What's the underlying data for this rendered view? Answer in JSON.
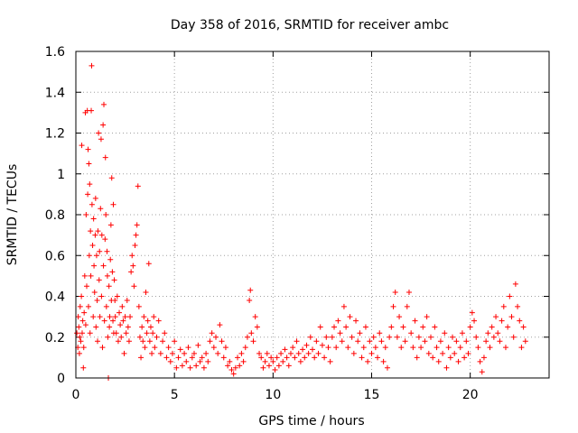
{
  "chart_data": {
    "type": "scatter",
    "title": "Day 358 of 2016, SRMTID for receiver ambc",
    "xlabel": "GPS time / hours",
    "ylabel": "SRMTID / TECUs",
    "xlim": [
      0,
      24
    ],
    "ylim": [
      0,
      1.6
    ],
    "xticks": [
      0,
      5,
      10,
      15,
      20
    ],
    "xtick_labels": [
      "0",
      "5",
      "10",
      "15",
      "20"
    ],
    "yticks": [
      0,
      0.2,
      0.4,
      0.6,
      0.8,
      1,
      1.2,
      1.4,
      1.6
    ],
    "ytick_labels": [
      "0",
      "0.2",
      "0.4",
      "0.6",
      "0.8",
      "1",
      "1.2",
      "1.4",
      "1.6"
    ],
    "grid": true,
    "marker": "plus",
    "color": "#ff0000",
    "series": [
      {
        "points": [
          [
            0.05,
            0.22
          ],
          [
            0.1,
            0.15
          ],
          [
            0.12,
            0.3
          ],
          [
            0.15,
            0.25
          ],
          [
            0.18,
            0.12
          ],
          [
            0.2,
            0.2
          ],
          [
            0.22,
            0.35
          ],
          [
            0.25,
            0.18
          ],
          [
            0.28,
            0.4
          ],
          [
            0.3,
            1.14
          ],
          [
            0.32,
            0.22
          ],
          [
            0.35,
            0.28
          ],
          [
            0.38,
            0.05
          ],
          [
            0.4,
            0.15
          ],
          [
            0.42,
            0.32
          ],
          [
            0.45,
            0.5
          ],
          [
            0.48,
            1.3
          ],
          [
            0.5,
            0.26
          ],
          [
            0.52,
            0.8
          ],
          [
            0.55,
            0.45
          ],
          [
            0.58,
            1.31
          ],
          [
            0.6,
            0.9
          ],
          [
            0.62,
            1.12
          ],
          [
            0.64,
            0.35
          ],
          [
            0.66,
            1.05
          ],
          [
            0.68,
            0.6
          ],
          [
            0.7,
            0.95
          ],
          [
            0.72,
            0.22
          ],
          [
            0.74,
            0.72
          ],
          [
            0.76,
            0.5
          ],
          [
            0.78,
            1.31
          ],
          [
            0.8,
            1.53
          ],
          [
            0.82,
            0.85
          ],
          [
            0.85,
            0.65
          ],
          [
            0.88,
            0.3
          ],
          [
            0.9,
            0.78
          ],
          [
            0.92,
            0.55
          ],
          [
            0.95,
            0.42
          ],
          [
            0.98,
            0.7
          ],
          [
            1.0,
            0.88
          ],
          [
            1.02,
            0.25
          ],
          [
            1.05,
            0.6
          ],
          [
            1.08,
            0.38
          ],
          [
            1.1,
            0.18
          ],
          [
            1.12,
            0.72
          ],
          [
            1.15,
            1.2
          ],
          [
            1.18,
            0.48
          ],
          [
            1.2,
            0.62
          ],
          [
            1.22,
            0.3
          ],
          [
            1.25,
            0.83
          ],
          [
            1.28,
            1.17
          ],
          [
            1.3,
            0.4
          ],
          [
            1.32,
            0.7
          ],
          [
            1.35,
            0.15
          ],
          [
            1.38,
            1.24
          ],
          [
            1.4,
            0.55
          ],
          [
            1.42,
            1.34
          ],
          [
            1.45,
            0.28
          ],
          [
            1.48,
            0.68
          ],
          [
            1.5,
            1.08
          ],
          [
            1.52,
            0.8
          ],
          [
            1.55,
            0.35
          ],
          [
            1.58,
            0.62
          ],
          [
            1.6,
            0.5
          ],
          [
            1.62,
            0.2
          ],
          [
            1.65,
            0.0
          ],
          [
            1.68,
            0.45
          ],
          [
            1.7,
            0.25
          ],
          [
            1.72,
            0.3
          ],
          [
            1.75,
            0.58
          ],
          [
            1.78,
            0.75
          ],
          [
            1.8,
            0.38
          ],
          [
            1.82,
            0.98
          ],
          [
            1.85,
            0.52
          ],
          [
            1.88,
            0.28
          ],
          [
            1.9,
            0.85
          ],
          [
            1.92,
            0.22
          ],
          [
            1.95,
            0.48
          ],
          [
            1.98,
            0.38
          ],
          [
            2.0,
            0.3
          ],
          [
            2.05,
            0.22
          ],
          [
            2.1,
            0.4
          ],
          [
            2.15,
            0.18
          ],
          [
            2.2,
            0.32
          ],
          [
            2.25,
            0.26
          ],
          [
            2.3,
            0.2
          ],
          [
            2.35,
            0.35
          ],
          [
            2.4,
            0.28
          ],
          [
            2.45,
            0.12
          ],
          [
            2.5,
            0.3
          ],
          [
            2.55,
            0.22
          ],
          [
            2.6,
            0.38
          ],
          [
            2.65,
            0.25
          ],
          [
            2.7,
            0.18
          ],
          [
            2.75,
            0.3
          ],
          [
            2.8,
            0.52
          ],
          [
            2.85,
            0.6
          ],
          [
            2.9,
            0.55
          ],
          [
            2.95,
            0.45
          ],
          [
            3.0,
            0.65
          ],
          [
            3.05,
            0.7
          ],
          [
            3.1,
            0.75
          ],
          [
            3.15,
            0.94
          ],
          [
            3.2,
            0.35
          ],
          [
            3.25,
            0.2
          ],
          [
            3.3,
            0.1
          ],
          [
            3.35,
            0.25
          ],
          [
            3.4,
            0.18
          ],
          [
            3.45,
            0.3
          ],
          [
            3.5,
            0.15
          ],
          [
            3.55,
            0.42
          ],
          [
            3.6,
            0.22
          ],
          [
            3.65,
            0.28
          ],
          [
            3.7,
            0.56
          ],
          [
            3.75,
            0.18
          ],
          [
            3.8,
            0.25
          ],
          [
            3.85,
            0.12
          ],
          [
            3.9,
            0.22
          ],
          [
            3.95,
            0.3
          ],
          [
            4.0,
            0.15
          ],
          [
            4.1,
            0.2
          ],
          [
            4.2,
            0.28
          ],
          [
            4.3,
            0.12
          ],
          [
            4.4,
            0.18
          ],
          [
            4.5,
            0.22
          ],
          [
            4.6,
            0.1
          ],
          [
            4.7,
            0.15
          ],
          [
            4.8,
            0.08
          ],
          [
            4.9,
            0.12
          ],
          [
            5.0,
            0.18
          ],
          [
            5.1,
            0.05
          ],
          [
            5.2,
            0.1
          ],
          [
            5.3,
            0.14
          ],
          [
            5.4,
            0.06
          ],
          [
            5.5,
            0.12
          ],
          [
            5.6,
            0.08
          ],
          [
            5.7,
            0.15
          ],
          [
            5.8,
            0.05
          ],
          [
            5.9,
            0.1
          ],
          [
            6.0,
            0.12
          ],
          [
            6.1,
            0.06
          ],
          [
            6.2,
            0.16
          ],
          [
            6.3,
            0.08
          ],
          [
            6.4,
            0.1
          ],
          [
            6.5,
            0.05
          ],
          [
            6.6,
            0.12
          ],
          [
            6.7,
            0.08
          ],
          [
            6.8,
            0.18
          ],
          [
            6.9,
            0.22
          ],
          [
            7.0,
            0.15
          ],
          [
            7.1,
            0.2
          ],
          [
            7.2,
            0.12
          ],
          [
            7.3,
            0.26
          ],
          [
            7.4,
            0.18
          ],
          [
            7.5,
            0.1
          ],
          [
            7.6,
            0.15
          ],
          [
            7.7,
            0.06
          ],
          [
            7.8,
            0.08
          ],
          [
            7.9,
            0.04
          ],
          [
            8.0,
            0.02
          ],
          [
            8.1,
            0.05
          ],
          [
            8.2,
            0.1
          ],
          [
            8.3,
            0.06
          ],
          [
            8.4,
            0.12
          ],
          [
            8.5,
            0.08
          ],
          [
            8.6,
            0.15
          ],
          [
            8.7,
            0.2
          ],
          [
            8.8,
            0.38
          ],
          [
            8.85,
            0.43
          ],
          [
            8.9,
            0.22
          ],
          [
            9.0,
            0.18
          ],
          [
            9.1,
            0.3
          ],
          [
            9.2,
            0.25
          ],
          [
            9.3,
            0.12
          ],
          [
            9.4,
            0.1
          ],
          [
            9.5,
            0.05
          ],
          [
            9.6,
            0.08
          ],
          [
            9.7,
            0.12
          ],
          [
            9.8,
            0.06
          ],
          [
            9.9,
            0.1
          ],
          [
            10.0,
            0.08
          ],
          [
            10.1,
            0.04
          ],
          [
            10.2,
            0.1
          ],
          [
            10.3,
            0.06
          ],
          [
            10.4,
            0.12
          ],
          [
            10.5,
            0.08
          ],
          [
            10.6,
            0.14
          ],
          [
            10.7,
            0.1
          ],
          [
            10.8,
            0.06
          ],
          [
            10.9,
            0.12
          ],
          [
            11.0,
            0.15
          ],
          [
            11.1,
            0.1
          ],
          [
            11.2,
            0.18
          ],
          [
            11.3,
            0.12
          ],
          [
            11.4,
            0.08
          ],
          [
            11.5,
            0.14
          ],
          [
            11.6,
            0.1
          ],
          [
            11.7,
            0.16
          ],
          [
            11.8,
            0.12
          ],
          [
            11.9,
            0.2
          ],
          [
            12.0,
            0.14
          ],
          [
            12.1,
            0.1
          ],
          [
            12.2,
            0.18
          ],
          [
            12.3,
            0.12
          ],
          [
            12.4,
            0.25
          ],
          [
            12.5,
            0.16
          ],
          [
            12.6,
            0.1
          ],
          [
            12.7,
            0.2
          ],
          [
            12.8,
            0.15
          ],
          [
            12.9,
            0.08
          ],
          [
            13.0,
            0.2
          ],
          [
            13.1,
            0.25
          ],
          [
            13.2,
            0.15
          ],
          [
            13.3,
            0.28
          ],
          [
            13.4,
            0.22
          ],
          [
            13.5,
            0.18
          ],
          [
            13.6,
            0.35
          ],
          [
            13.7,
            0.25
          ],
          [
            13.8,
            0.15
          ],
          [
            13.9,
            0.3
          ],
          [
            14.0,
            0.2
          ],
          [
            14.1,
            0.12
          ],
          [
            14.2,
            0.28
          ],
          [
            14.3,
            0.18
          ],
          [
            14.4,
            0.22
          ],
          [
            14.5,
            0.1
          ],
          [
            14.6,
            0.15
          ],
          [
            14.7,
            0.25
          ],
          [
            14.8,
            0.08
          ],
          [
            14.9,
            0.18
          ],
          [
            15.0,
            0.12
          ],
          [
            15.1,
            0.2
          ],
          [
            15.2,
            0.15
          ],
          [
            15.3,
            0.1
          ],
          [
            15.4,
            0.22
          ],
          [
            15.5,
            0.18
          ],
          [
            15.6,
            0.08
          ],
          [
            15.7,
            0.15
          ],
          [
            15.8,
            0.05
          ],
          [
            15.9,
            0.2
          ],
          [
            16.0,
            0.25
          ],
          [
            16.1,
            0.35
          ],
          [
            16.2,
            0.42
          ],
          [
            16.3,
            0.2
          ],
          [
            16.4,
            0.3
          ],
          [
            16.5,
            0.15
          ],
          [
            16.6,
            0.25
          ],
          [
            16.7,
            0.18
          ],
          [
            16.8,
            0.35
          ],
          [
            16.9,
            0.42
          ],
          [
            17.0,
            0.22
          ],
          [
            17.1,
            0.15
          ],
          [
            17.2,
            0.28
          ],
          [
            17.3,
            0.1
          ],
          [
            17.4,
            0.2
          ],
          [
            17.5,
            0.15
          ],
          [
            17.6,
            0.25
          ],
          [
            17.7,
            0.18
          ],
          [
            17.8,
            0.3
          ],
          [
            17.9,
            0.12
          ],
          [
            18.0,
            0.2
          ],
          [
            18.1,
            0.1
          ],
          [
            18.2,
            0.25
          ],
          [
            18.3,
            0.15
          ],
          [
            18.4,
            0.08
          ],
          [
            18.5,
            0.18
          ],
          [
            18.6,
            0.12
          ],
          [
            18.7,
            0.22
          ],
          [
            18.8,
            0.05
          ],
          [
            18.9,
            0.15
          ],
          [
            19.0,
            0.1
          ],
          [
            19.1,
            0.2
          ],
          [
            19.2,
            0.12
          ],
          [
            19.3,
            0.18
          ],
          [
            19.4,
            0.08
          ],
          [
            19.5,
            0.15
          ],
          [
            19.6,
            0.22
          ],
          [
            19.7,
            0.1
          ],
          [
            19.8,
            0.18
          ],
          [
            19.9,
            0.12
          ],
          [
            20.0,
            0.25
          ],
          [
            20.1,
            0.32
          ],
          [
            20.2,
            0.28
          ],
          [
            20.3,
            0.2
          ],
          [
            20.4,
            0.15
          ],
          [
            20.5,
            0.08
          ],
          [
            20.6,
            0.03
          ],
          [
            20.7,
            0.1
          ],
          [
            20.8,
            0.18
          ],
          [
            20.9,
            0.22
          ],
          [
            21.0,
            0.15
          ],
          [
            21.1,
            0.25
          ],
          [
            21.2,
            0.2
          ],
          [
            21.3,
            0.3
          ],
          [
            21.4,
            0.22
          ],
          [
            21.5,
            0.18
          ],
          [
            21.6,
            0.28
          ],
          [
            21.7,
            0.35
          ],
          [
            21.8,
            0.15
          ],
          [
            21.9,
            0.25
          ],
          [
            22.0,
            0.4
          ],
          [
            22.1,
            0.3
          ],
          [
            22.2,
            0.2
          ],
          [
            22.3,
            0.46
          ],
          [
            22.4,
            0.35
          ],
          [
            22.5,
            0.28
          ],
          [
            22.6,
            0.15
          ],
          [
            22.7,
            0.25
          ],
          [
            22.8,
            0.18
          ]
        ]
      }
    ]
  }
}
